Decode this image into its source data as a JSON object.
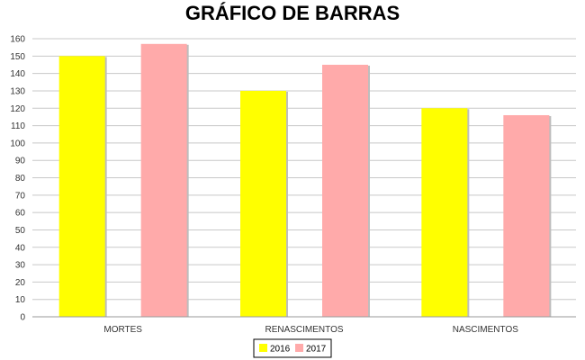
{
  "chart_data": {
    "type": "bar",
    "title": "GRÁFICO DE BARRAS",
    "categories": [
      "MORTES",
      "RENASCIMENTOS",
      "NASCIMENTOS"
    ],
    "series": [
      {
        "name": "2016",
        "values": [
          150,
          130,
          120
        ],
        "color": "#ffff00"
      },
      {
        "name": "2017",
        "values": [
          157,
          145,
          116
        ],
        "color": "#ffaaaa"
      }
    ],
    "xlabel": "",
    "ylabel": "",
    "ylim": [
      0,
      160
    ],
    "yticks": [
      0,
      10,
      20,
      30,
      40,
      50,
      60,
      70,
      80,
      90,
      100,
      110,
      120,
      130,
      140,
      150,
      160
    ],
    "grid": true,
    "legend_position": "bottom-center"
  }
}
